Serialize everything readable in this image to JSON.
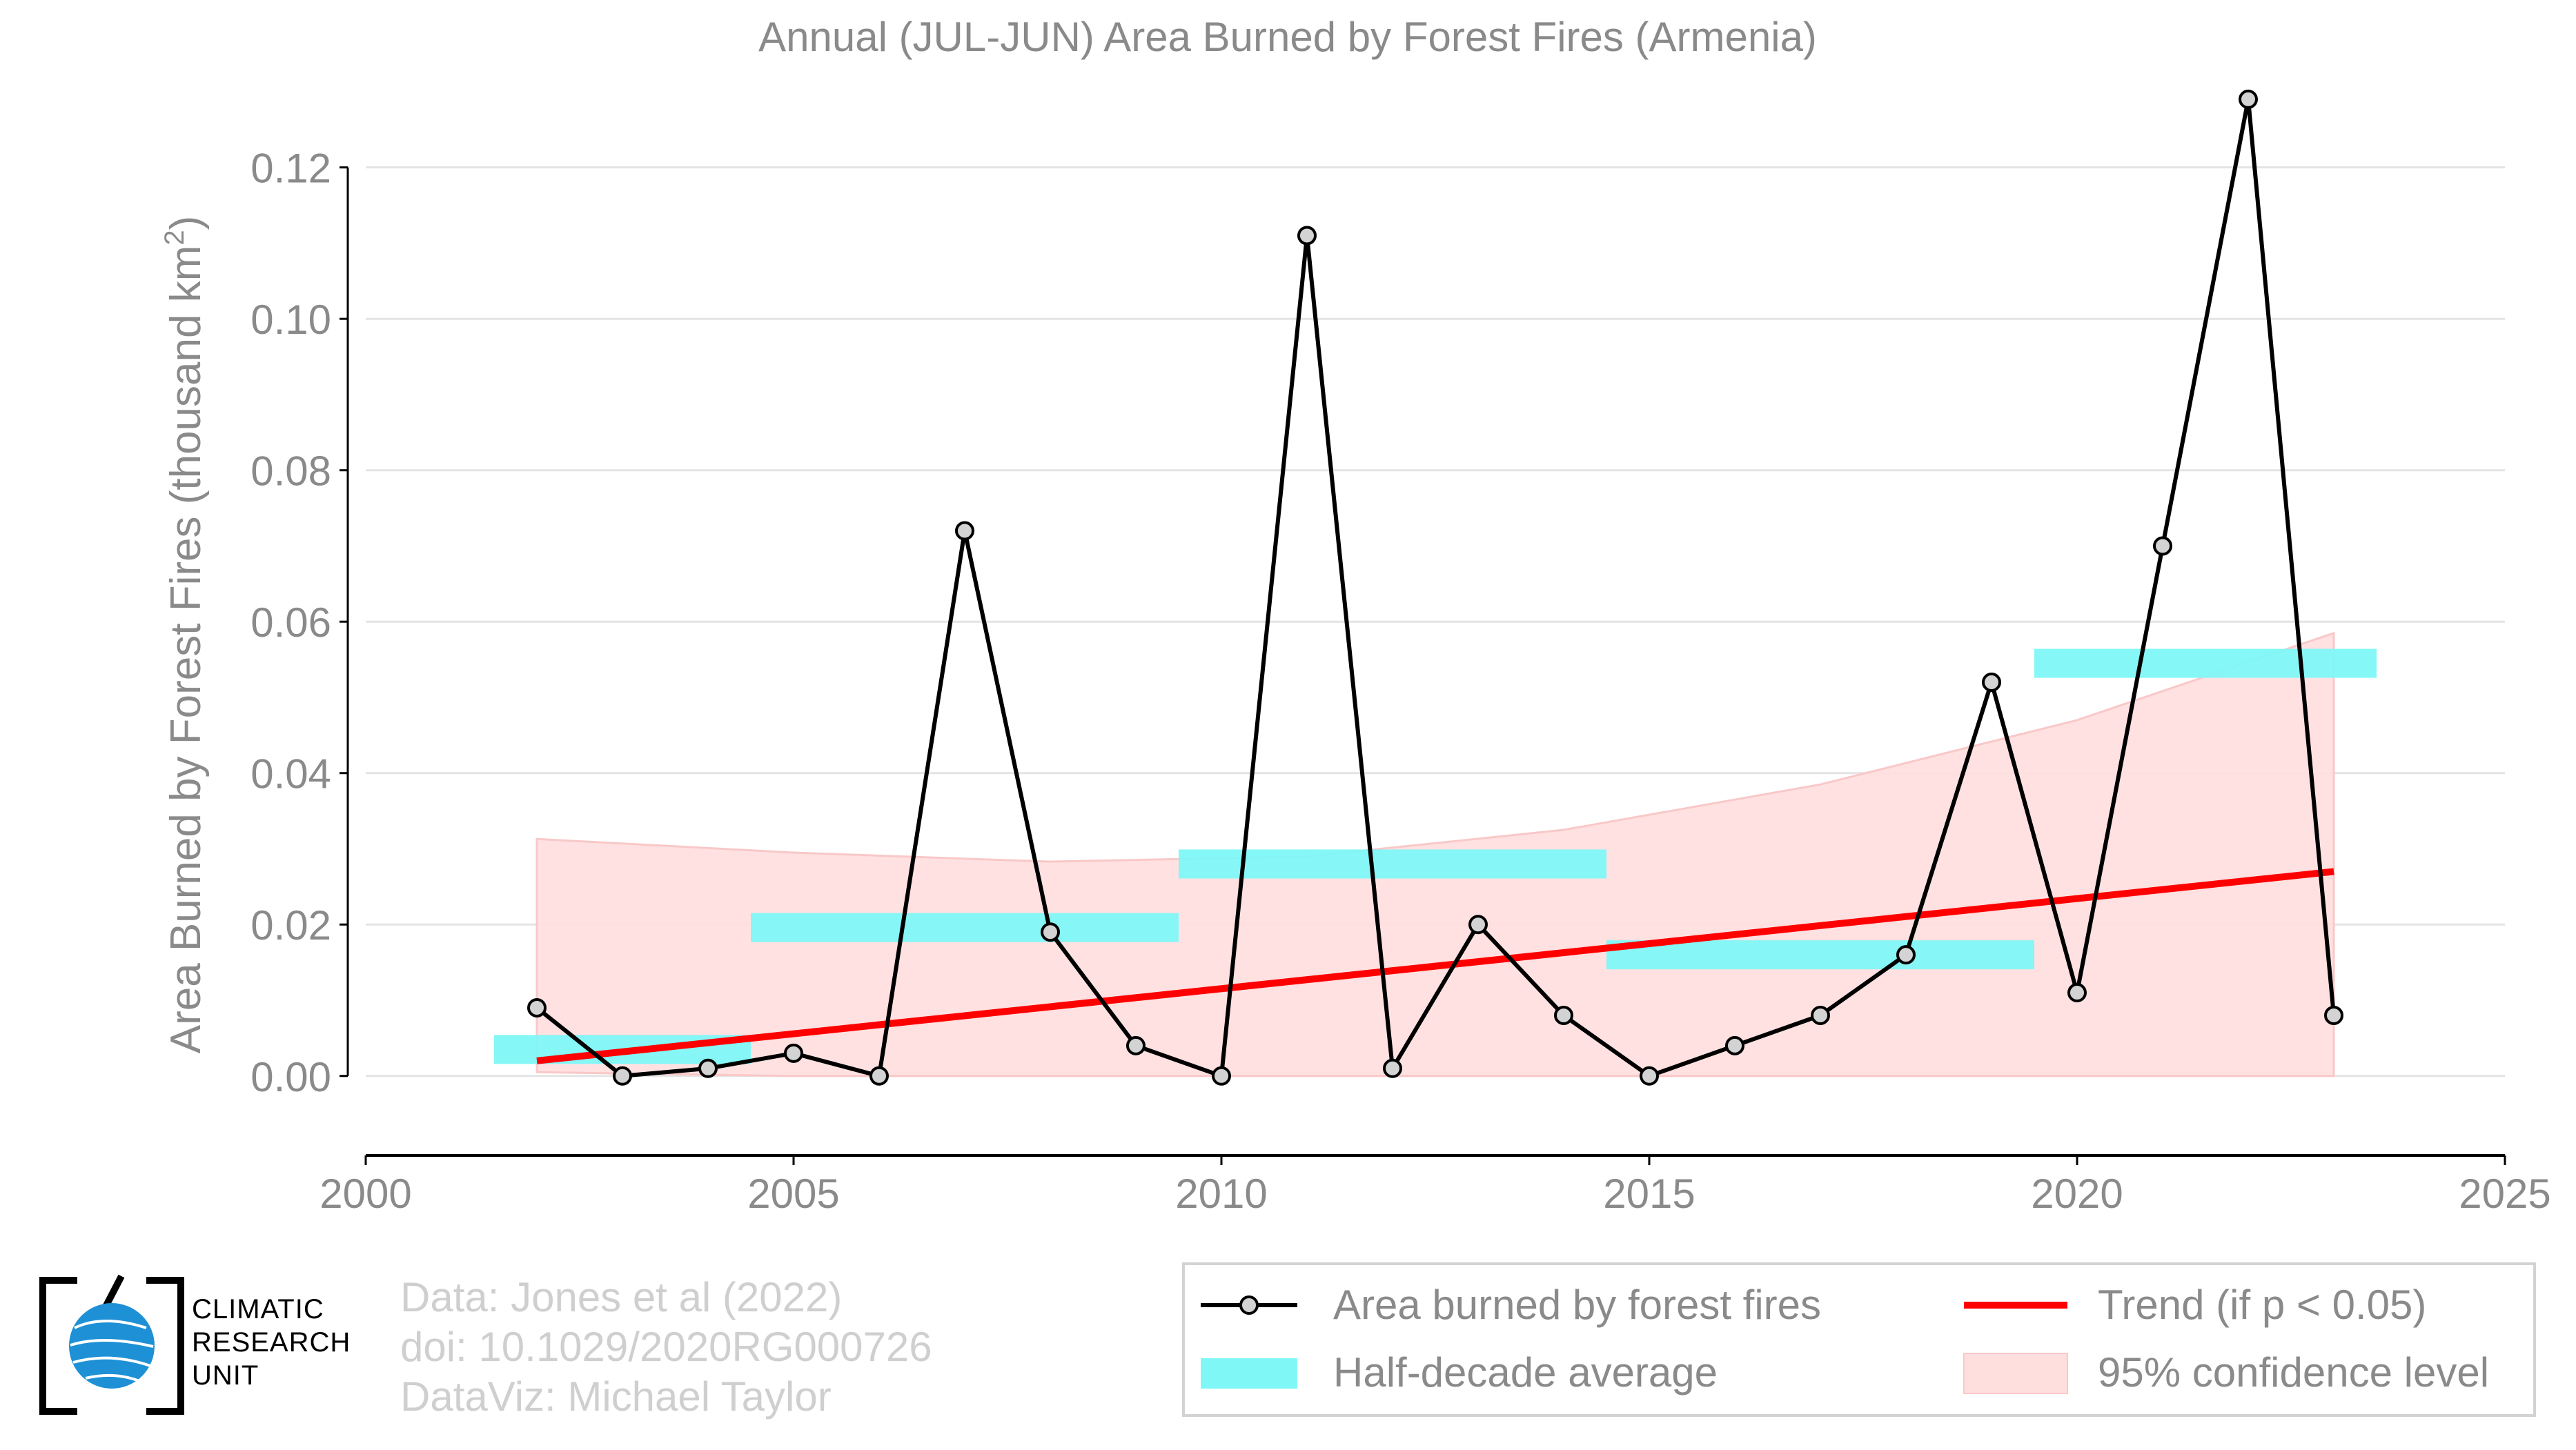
{
  "title": "Annual (JUL-JUN) Area Burned by Forest Fires (Armenia)",
  "colors": {
    "series": "#000000",
    "marker_fill": "#d3d3d3",
    "half_decade": "#7ff7f7",
    "trend": "#ff0000",
    "confidence": "#ffdede",
    "confidence_edge": "#f9c8c8",
    "grid": "#e4e4e4",
    "text": "#8a8a8a"
  },
  "chart_data": {
    "type": "line",
    "title": "Annual (JUL-JUN) Area Burned by Forest Fires (Armenia)",
    "xlabel": "",
    "ylabel": "Area Burned by Forest Fires (thousand km",
    "ylabel_sup": "2",
    "ylabel_tail": ")",
    "xlim": [
      2000,
      2025
    ],
    "ylim": [
      -0.0105,
      0.133
    ],
    "x_ticks": [
      2000,
      2005,
      2010,
      2015,
      2020,
      2025
    ],
    "y_ticks": [
      0.0,
      0.02,
      0.04,
      0.06,
      0.08,
      0.1,
      0.12
    ],
    "y_tick_labels": [
      "0.00",
      "0.02",
      "0.04",
      "0.06",
      "0.08",
      "0.10",
      "0.12"
    ],
    "grid": true,
    "series": [
      {
        "name": "Area burned by forest fires",
        "x": [
          2002,
          2003,
          2004,
          2005,
          2006,
          2007,
          2008,
          2009,
          2010,
          2011,
          2012,
          2013,
          2014,
          2015,
          2016,
          2017,
          2018,
          2019,
          2020,
          2021,
          2022,
          2023
        ],
        "y": [
          0.009,
          0.0,
          0.001,
          0.003,
          0.0,
          0.072,
          0.019,
          0.004,
          0.0,
          0.111,
          0.001,
          0.02,
          0.008,
          0.0,
          0.004,
          0.008,
          0.016,
          0.052,
          0.011,
          0.07,
          0.129,
          0.008
        ]
      }
    ],
    "half_decade_average": {
      "name": "Half-decade average",
      "segments": [
        {
          "x0": 2001.5,
          "x1": 2004.5,
          "y": 0.0035
        },
        {
          "x0": 2004.5,
          "x1": 2009.5,
          "y": 0.0196
        },
        {
          "x0": 2009.5,
          "x1": 2014.5,
          "y": 0.028
        },
        {
          "x0": 2014.5,
          "x1": 2019.5,
          "y": 0.016
        },
        {
          "x0": 2019.5,
          "x1": 2023.5,
          "y": 0.0545
        }
      ]
    },
    "trend": {
      "name": "Trend (if p < 0.05)",
      "x": [
        2002,
        2023
      ],
      "y": [
        0.002,
        0.027
      ]
    },
    "confidence": {
      "name": "95% confidence level",
      "x": [
        2002,
        2005,
        2008,
        2011,
        2014,
        2017,
        2020,
        2023
      ],
      "upper": [
        0.0313,
        0.0295,
        0.0283,
        0.029,
        0.0325,
        0.0385,
        0.047,
        0.0585
      ],
      "lower": [
        0.0005,
        0.0,
        0.0,
        0.0,
        0.0,
        0.0,
        0.0,
        0.0
      ]
    }
  },
  "legend": {
    "placement": "bottom-right",
    "items": [
      "Area burned by forest fires",
      "Half-decade average",
      "Trend (if p < 0.05)",
      "95% confidence level"
    ]
  },
  "credits": [
    "Data: Jones et al (2022)",
    "doi: 10.1029/2020RG000726",
    "DataViz: Michael Taylor"
  ],
  "logo": {
    "icon": "globe-icon",
    "lines": [
      "CLIMATIC",
      "RESEARCH",
      "UNIT"
    ]
  }
}
